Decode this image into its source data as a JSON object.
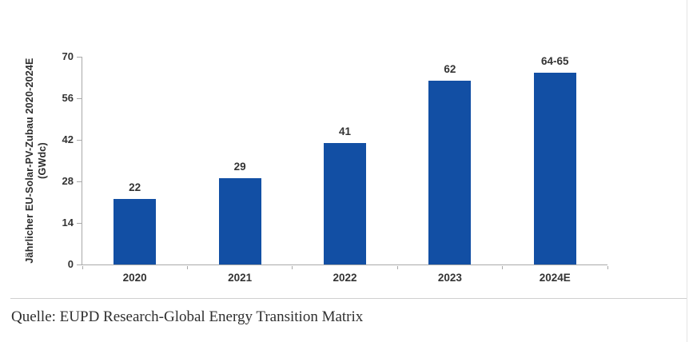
{
  "chart_data": {
    "type": "bar",
    "title": "",
    "categories": [
      "2020",
      "2021",
      "2022",
      "2023",
      "2024E"
    ],
    "values": [
      22,
      29,
      41,
      62,
      64.5
    ],
    "value_labels": [
      "22",
      "29",
      "41",
      "62",
      "64-65"
    ],
    "ylabel": "Jährlicher EU-Solar-PV-Zubau 2020-2024E (GWdc)",
    "ylabel_line1": "Jährlicher EU-Solar-PV-Zubau 2020-2024E",
    "ylabel_line2": "(GWdc)",
    "xlabel": "",
    "yticks": [
      0,
      14,
      28,
      42,
      56,
      70
    ],
    "ylim": [
      0,
      70
    ],
    "grid": false,
    "legend": false,
    "bar_color": "#124fa4",
    "axis_color": "#a9a9a9",
    "label_color": "#333333"
  },
  "footer": {
    "source": "Quelle: EUPD Research-Global Energy Transition Matrix"
  }
}
